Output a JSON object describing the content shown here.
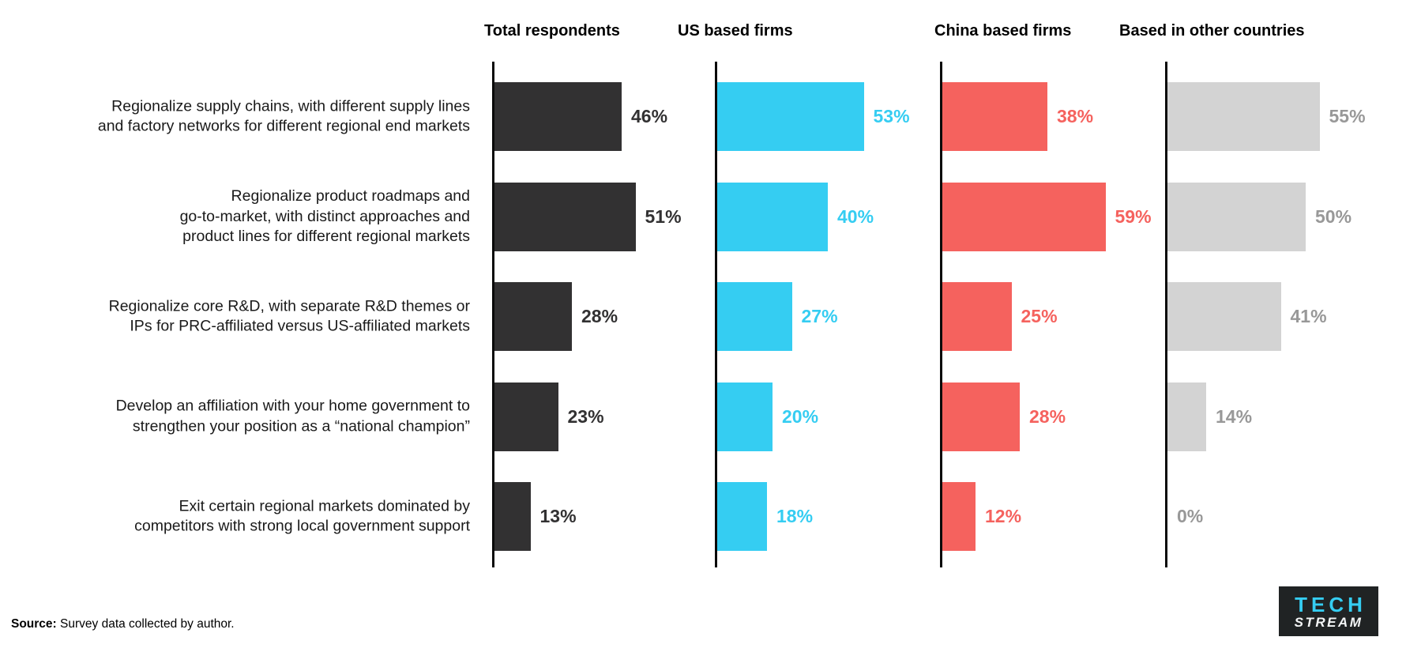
{
  "chart_data": {
    "type": "bar",
    "orientation": "horizontal",
    "value_suffix": "%",
    "grid": false,
    "legend_position": "column-headers-top",
    "axis_color": "#0a0a0a",
    "categories": [
      "Regionalize supply chains, with different supply lines\nand factory networks for different regional end markets",
      "Regionalize product roadmaps and\ngo-to-market, with distinct approaches and\nproduct lines for different regional markets",
      "Regionalize core R&D, with separate R&D themes or\nIPs for PRC-affiliated versus US-affiliated markets",
      "Develop an affiliation with your home government to\nstrengthen your position as a “national champion”",
      "Exit certain regional markets dominated by\ncompetitors with strong local government support"
    ],
    "series": [
      {
        "name": "Total respondents",
        "color": "#323132",
        "label_color": "#323132",
        "values": [
          46,
          51,
          28,
          23,
          13
        ]
      },
      {
        "name": "US based firms",
        "color": "#35CDF2",
        "label_color": "#35CDF2",
        "values": [
          53,
          40,
          27,
          20,
          18
        ]
      },
      {
        "name": "China based firms",
        "color": "#F5625E",
        "label_color": "#F5625E",
        "values": [
          38,
          59,
          25,
          28,
          12
        ]
      },
      {
        "name": "Based in other countries",
        "color": "#D3D3D3",
        "label_color": "#989898",
        "values": [
          55,
          50,
          41,
          14,
          0
        ]
      }
    ],
    "xlim": [
      0,
      60
    ]
  },
  "source": {
    "label": "Source:",
    "text": " Survey data collected by author."
  },
  "logo": {
    "line1": "TECH",
    "line2": "STREAM",
    "accent_color": "#35CDF2",
    "background_color": "#202324"
  }
}
